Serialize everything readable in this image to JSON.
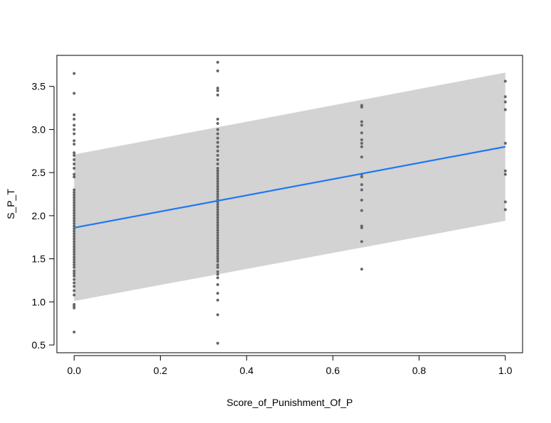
{
  "chart_data": {
    "type": "scatter",
    "title": "",
    "xlabel": "Score_of_Punishment_Of_P",
    "ylabel": "S_P_T",
    "xlim": [
      -0.04,
      1.04
    ],
    "ylim": [
      0.41,
      3.86
    ],
    "xticks": [
      0.0,
      0.2,
      0.4,
      0.6,
      0.8,
      1.0
    ],
    "xtick_labels": [
      "0.0",
      "0.2",
      "0.4",
      "0.6",
      "0.8",
      "1.0"
    ],
    "yticks": [
      0.5,
      1.0,
      1.5,
      2.0,
      2.5,
      3.0,
      3.5
    ],
    "ytick_labels": [
      "0.5",
      "1.0",
      "1.5",
      "2.0",
      "2.5",
      "3.0",
      "3.5"
    ],
    "grid": false,
    "colors": {
      "points": "#666666",
      "fit_line": "#1f77f4",
      "band": "#d3d3d3"
    },
    "fit_line": {
      "x": [
        0,
        1
      ],
      "y": [
        1.86,
        2.8
      ]
    },
    "prediction_band": {
      "x": [
        0,
        1
      ],
      "lower": [
        1.01,
        1.94
      ],
      "upper": [
        2.71,
        3.66
      ]
    },
    "series": [
      {
        "points": [
          [
            0,
            0.65
          ],
          [
            0,
            0.93
          ],
          [
            0,
            0.95
          ],
          [
            0,
            0.97
          ],
          [
            0,
            1.08
          ],
          [
            0,
            1.13
          ],
          [
            0,
            1.18
          ],
          [
            0,
            1.22
          ],
          [
            0,
            1.26
          ],
          [
            0,
            1.3
          ],
          [
            0,
            1.33
          ],
          [
            0,
            1.36
          ],
          [
            0,
            1.4
          ],
          [
            0,
            1.43
          ],
          [
            0,
            1.46
          ],
          [
            0,
            1.49
          ],
          [
            0,
            1.52
          ],
          [
            0,
            1.55
          ],
          [
            0,
            1.58
          ],
          [
            0,
            1.61
          ],
          [
            0,
            1.64
          ],
          [
            0,
            1.67
          ],
          [
            0,
            1.7
          ],
          [
            0,
            1.73
          ],
          [
            0,
            1.76
          ],
          [
            0,
            1.79
          ],
          [
            0,
            1.82
          ],
          [
            0,
            1.85
          ],
          [
            0,
            1.88
          ],
          [
            0,
            1.91
          ],
          [
            0,
            1.94
          ],
          [
            0,
            1.97
          ],
          [
            0,
            2.0
          ],
          [
            0,
            2.03
          ],
          [
            0,
            2.06
          ],
          [
            0,
            2.09
          ],
          [
            0,
            2.12
          ],
          [
            0,
            2.15
          ],
          [
            0,
            2.18
          ],
          [
            0,
            2.21
          ],
          [
            0,
            2.24
          ],
          [
            0,
            2.27
          ],
          [
            0,
            2.3
          ],
          [
            0,
            2.45
          ],
          [
            0,
            2.48
          ],
          [
            0,
            2.55
          ],
          [
            0,
            2.6
          ],
          [
            0,
            2.65
          ],
          [
            0,
            2.7
          ],
          [
            0,
            2.73
          ],
          [
            0,
            2.83
          ],
          [
            0,
            2.87
          ],
          [
            0,
            2.95
          ],
          [
            0,
            3.0
          ],
          [
            0,
            3.05
          ],
          [
            0,
            3.12
          ],
          [
            0,
            3.17
          ],
          [
            0,
            3.42
          ],
          [
            0,
            3.65
          ],
          [
            0.333,
            0.52
          ],
          [
            0.333,
            0.85
          ],
          [
            0.333,
            1.02
          ],
          [
            0.333,
            1.1
          ],
          [
            0.333,
            1.2
          ],
          [
            0.333,
            1.28
          ],
          [
            0.333,
            1.32
          ],
          [
            0.333,
            1.35
          ],
          [
            0.333,
            1.4
          ],
          [
            0.333,
            1.43
          ],
          [
            0.333,
            1.47
          ],
          [
            0.333,
            1.5
          ],
          [
            0.333,
            1.53
          ],
          [
            0.333,
            1.56
          ],
          [
            0.333,
            1.59
          ],
          [
            0.333,
            1.62
          ],
          [
            0.333,
            1.65
          ],
          [
            0.333,
            1.68
          ],
          [
            0.333,
            1.71
          ],
          [
            0.333,
            1.74
          ],
          [
            0.333,
            1.77
          ],
          [
            0.333,
            1.8
          ],
          [
            0.333,
            1.83
          ],
          [
            0.333,
            1.86
          ],
          [
            0.333,
            1.89
          ],
          [
            0.333,
            1.92
          ],
          [
            0.333,
            1.95
          ],
          [
            0.333,
            1.98
          ],
          [
            0.333,
            2.01
          ],
          [
            0.333,
            2.04
          ],
          [
            0.333,
            2.07
          ],
          [
            0.333,
            2.1
          ],
          [
            0.333,
            2.13
          ],
          [
            0.333,
            2.16
          ],
          [
            0.333,
            2.19
          ],
          [
            0.333,
            2.22
          ],
          [
            0.333,
            2.25
          ],
          [
            0.333,
            2.28
          ],
          [
            0.333,
            2.31
          ],
          [
            0.333,
            2.34
          ],
          [
            0.333,
            2.37
          ],
          [
            0.333,
            2.4
          ],
          [
            0.333,
            2.43
          ],
          [
            0.333,
            2.46
          ],
          [
            0.333,
            2.49
          ],
          [
            0.333,
            2.52
          ],
          [
            0.333,
            2.55
          ],
          [
            0.333,
            2.6
          ],
          [
            0.333,
            2.65
          ],
          [
            0.333,
            2.7
          ],
          [
            0.333,
            2.75
          ],
          [
            0.333,
            2.8
          ],
          [
            0.333,
            2.85
          ],
          [
            0.333,
            2.9
          ],
          [
            0.333,
            2.95
          ],
          [
            0.333,
            3.0
          ],
          [
            0.333,
            3.07
          ],
          [
            0.333,
            3.12
          ],
          [
            0.333,
            3.4
          ],
          [
            0.333,
            3.45
          ],
          [
            0.333,
            3.48
          ],
          [
            0.333,
            3.68
          ],
          [
            0.333,
            3.78
          ],
          [
            0.667,
            1.38
          ],
          [
            0.667,
            1.7
          ],
          [
            0.667,
            1.86
          ],
          [
            0.667,
            1.88
          ],
          [
            0.667,
            2.06
          ],
          [
            0.667,
            2.18
          ],
          [
            0.667,
            2.3
          ],
          [
            0.667,
            2.36
          ],
          [
            0.667,
            2.45
          ],
          [
            0.667,
            2.48
          ],
          [
            0.667,
            2.68
          ],
          [
            0.667,
            2.8
          ],
          [
            0.667,
            2.84
          ],
          [
            0.667,
            2.88
          ],
          [
            0.667,
            2.96
          ],
          [
            0.667,
            3.05
          ],
          [
            0.667,
            3.09
          ],
          [
            0.667,
            3.26
          ],
          [
            0.667,
            3.28
          ],
          [
            1,
            2.07
          ],
          [
            1,
            2.16
          ],
          [
            1,
            2.48
          ],
          [
            1,
            2.52
          ],
          [
            1,
            2.84
          ],
          [
            1,
            3.23
          ],
          [
            1,
            3.32
          ],
          [
            1,
            3.38
          ],
          [
            1,
            3.56
          ]
        ]
      }
    ]
  }
}
